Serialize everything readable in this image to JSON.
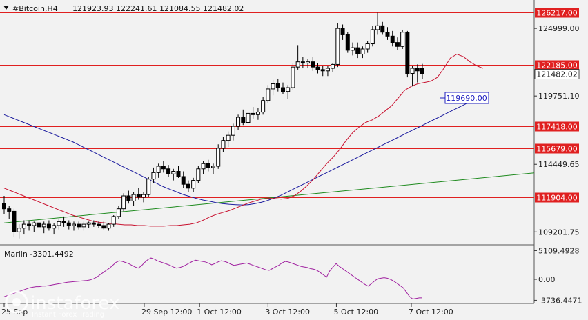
{
  "header": {
    "symbol": "#Bitcoin,H4",
    "ohlc": "121923.93 122241.61 121084.55 121482.02"
  },
  "indicator": {
    "label": "Marlin -3301.4492",
    "ticks": [
      "5109.4928",
      "0.00",
      "-3736.4471"
    ],
    "tick_values": [
      5109.4928,
      0,
      -3736.4471
    ]
  },
  "price_axis": {
    "ticks": [
      "124999.00",
      "119751.10",
      "114449.65",
      "109201.75"
    ],
    "tick_values": [
      124999.0,
      119751.1,
      114449.65,
      109201.75
    ],
    "current_price": "121482.02",
    "current_value": 121482.02
  },
  "levels": [
    {
      "label": "126217.00",
      "value": 126217.0,
      "style": "filled"
    },
    {
      "label": "122185.00",
      "value": 122185.0,
      "style": "filled"
    },
    {
      "label": "117418.00",
      "value": 117418.0,
      "style": "filled"
    },
    {
      "label": "115679.00",
      "value": 115679.0,
      "style": "filled"
    },
    {
      "label": "111904.00",
      "value": 111904.0,
      "style": "filled"
    }
  ],
  "callout": {
    "label": "119690.00",
    "value": 119690.0
  },
  "time_axis": {
    "labels": [
      "25 Sep",
      "29 Sep 12:00",
      "1 Oct 12:00",
      "3 Oct 12:00",
      "5 Oct 12:00",
      "7 Oct 12:00"
    ],
    "label_bars": [
      0,
      43,
      60,
      81,
      102,
      125
    ]
  },
  "watermark": {
    "brand": "instaforex",
    "tagline": "Instant Forex Trading"
  },
  "colors": {
    "background": "#f2f2f2",
    "level_line": "#e02020",
    "level_label_bg": "#e02020",
    "ma_fast": "#c8102e",
    "ma_slow": "#1a1a9e",
    "ma_long": "#1e8a1e",
    "oscillator": "#a020a0",
    "callout_border": "#2020c0"
  },
  "chart_data": {
    "type": "candlestick",
    "title": "#Bitcoin,H4",
    "ylim": [
      108200,
      127200
    ],
    "candles": [
      {
        "o": 111400,
        "h": 112000,
        "l": 110600,
        "c": 111000
      },
      {
        "o": 111000,
        "h": 111200,
        "l": 110200,
        "c": 110800
      },
      {
        "o": 110800,
        "h": 111000,
        "l": 108800,
        "c": 109200
      },
      {
        "o": 109200,
        "h": 109800,
        "l": 108700,
        "c": 109500
      },
      {
        "o": 109500,
        "h": 110100,
        "l": 109000,
        "c": 109800
      },
      {
        "o": 109800,
        "h": 110100,
        "l": 109300,
        "c": 109700
      },
      {
        "o": 109700,
        "h": 110000,
        "l": 109200,
        "c": 109900
      },
      {
        "o": 109900,
        "h": 110300,
        "l": 109400,
        "c": 109600
      },
      {
        "o": 109600,
        "h": 110000,
        "l": 109100,
        "c": 109800
      },
      {
        "o": 109800,
        "h": 110100,
        "l": 109300,
        "c": 109500
      },
      {
        "o": 109500,
        "h": 109900,
        "l": 109000,
        "c": 109700
      },
      {
        "o": 109700,
        "h": 110200,
        "l": 109400,
        "c": 110000
      },
      {
        "o": 110000,
        "h": 110400,
        "l": 109600,
        "c": 109900
      },
      {
        "o": 109900,
        "h": 110100,
        "l": 109400,
        "c": 109700
      },
      {
        "o": 109700,
        "h": 110000,
        "l": 109300,
        "c": 109800
      },
      {
        "o": 109800,
        "h": 110000,
        "l": 109400,
        "c": 109600
      },
      {
        "o": 109600,
        "h": 110000,
        "l": 109300,
        "c": 109800
      },
      {
        "o": 109800,
        "h": 110000,
        "l": 109500,
        "c": 109900
      },
      {
        "o": 109900,
        "h": 110100,
        "l": 109600,
        "c": 109800
      },
      {
        "o": 109800,
        "h": 110000,
        "l": 109500,
        "c": 109700
      },
      {
        "o": 109700,
        "h": 110000,
        "l": 109400,
        "c": 109500
      },
      {
        "o": 109500,
        "h": 109900,
        "l": 109300,
        "c": 109800
      },
      {
        "o": 109800,
        "h": 110500,
        "l": 109600,
        "c": 110400
      },
      {
        "o": 110400,
        "h": 111200,
        "l": 110200,
        "c": 111000
      },
      {
        "o": 111000,
        "h": 112200,
        "l": 110800,
        "c": 112000
      },
      {
        "o": 112000,
        "h": 112400,
        "l": 111400,
        "c": 111600
      },
      {
        "o": 111600,
        "h": 112300,
        "l": 111200,
        "c": 112100
      },
      {
        "o": 112100,
        "h": 112600,
        "l": 111700,
        "c": 111900
      },
      {
        "o": 111900,
        "h": 112300,
        "l": 111500,
        "c": 112100
      },
      {
        "o": 112100,
        "h": 113500,
        "l": 111900,
        "c": 113300
      },
      {
        "o": 113300,
        "h": 114200,
        "l": 113000,
        "c": 113800
      },
      {
        "o": 113800,
        "h": 114500,
        "l": 113400,
        "c": 114300
      },
      {
        "o": 114300,
        "h": 114700,
        "l": 113800,
        "c": 114100
      },
      {
        "o": 114100,
        "h": 114400,
        "l": 113500,
        "c": 113700
      },
      {
        "o": 113700,
        "h": 114100,
        "l": 113200,
        "c": 113900
      },
      {
        "o": 113900,
        "h": 114300,
        "l": 113400,
        "c": 113500
      },
      {
        "o": 113500,
        "h": 113900,
        "l": 112600,
        "c": 112900
      },
      {
        "o": 112900,
        "h": 113200,
        "l": 112300,
        "c": 112600
      },
      {
        "o": 112600,
        "h": 113400,
        "l": 112300,
        "c": 113200
      },
      {
        "o": 113200,
        "h": 114300,
        "l": 113000,
        "c": 114100
      },
      {
        "o": 114100,
        "h": 114700,
        "l": 113700,
        "c": 114500
      },
      {
        "o": 114500,
        "h": 114800,
        "l": 113900,
        "c": 114200
      },
      {
        "o": 114200,
        "h": 114500,
        "l": 113700,
        "c": 114300
      },
      {
        "o": 114300,
        "h": 116000,
        "l": 114100,
        "c": 115700
      },
      {
        "o": 115700,
        "h": 116600,
        "l": 115400,
        "c": 116300
      },
      {
        "o": 116300,
        "h": 117000,
        "l": 115800,
        "c": 116700
      },
      {
        "o": 116700,
        "h": 117600,
        "l": 116300,
        "c": 117400
      },
      {
        "o": 117400,
        "h": 118300,
        "l": 117100,
        "c": 118100
      },
      {
        "o": 118100,
        "h": 118700,
        "l": 117500,
        "c": 117700
      },
      {
        "o": 117700,
        "h": 118700,
        "l": 117500,
        "c": 118400
      },
      {
        "o": 118400,
        "h": 118900,
        "l": 118000,
        "c": 118300
      },
      {
        "o": 118300,
        "h": 118800,
        "l": 117900,
        "c": 118500
      },
      {
        "o": 118500,
        "h": 119700,
        "l": 118300,
        "c": 119400
      },
      {
        "o": 119400,
        "h": 120600,
        "l": 119200,
        "c": 120300
      },
      {
        "o": 120300,
        "h": 121000,
        "l": 119800,
        "c": 120700
      },
      {
        "o": 120700,
        "h": 121100,
        "l": 120100,
        "c": 120400
      },
      {
        "o": 120400,
        "h": 120800,
        "l": 119900,
        "c": 120100
      },
      {
        "o": 120100,
        "h": 120600,
        "l": 119500,
        "c": 120400
      },
      {
        "o": 120400,
        "h": 122300,
        "l": 120200,
        "c": 122000
      },
      {
        "o": 122000,
        "h": 123700,
        "l": 121800,
        "c": 122400
      },
      {
        "o": 122400,
        "h": 122800,
        "l": 121900,
        "c": 122300
      },
      {
        "o": 122300,
        "h": 122600,
        "l": 121900,
        "c": 122400
      },
      {
        "o": 122400,
        "h": 122800,
        "l": 121700,
        "c": 122000
      },
      {
        "o": 122000,
        "h": 122300,
        "l": 121500,
        "c": 121800
      },
      {
        "o": 121800,
        "h": 122100,
        "l": 121300,
        "c": 121700
      },
      {
        "o": 121700,
        "h": 122100,
        "l": 121300,
        "c": 121900
      },
      {
        "o": 121900,
        "h": 122300,
        "l": 121600,
        "c": 122200
      },
      {
        "o": 122200,
        "h": 125400,
        "l": 122000,
        "c": 125000
      },
      {
        "o": 125000,
        "h": 125300,
        "l": 124100,
        "c": 124500
      },
      {
        "o": 124500,
        "h": 124700,
        "l": 123100,
        "c": 123300
      },
      {
        "o": 123300,
        "h": 123900,
        "l": 122900,
        "c": 123500
      },
      {
        "o": 123500,
        "h": 123900,
        "l": 122700,
        "c": 123000
      },
      {
        "o": 123000,
        "h": 123600,
        "l": 122700,
        "c": 123400
      },
      {
        "o": 123400,
        "h": 124000,
        "l": 123100,
        "c": 123800
      },
      {
        "o": 123800,
        "h": 125200,
        "l": 123600,
        "c": 124900
      },
      {
        "o": 124900,
        "h": 126217,
        "l": 124500,
        "c": 125200
      },
      {
        "o": 125200,
        "h": 125500,
        "l": 124500,
        "c": 124700
      },
      {
        "o": 124700,
        "h": 125100,
        "l": 124100,
        "c": 124400
      },
      {
        "o": 124400,
        "h": 124800,
        "l": 123600,
        "c": 123900
      },
      {
        "o": 123900,
        "h": 124300,
        "l": 123300,
        "c": 123600
      },
      {
        "o": 123600,
        "h": 124900,
        "l": 123400,
        "c": 124700
      },
      {
        "o": 124700,
        "h": 124800,
        "l": 121200,
        "c": 121500
      },
      {
        "o": 121500,
        "h": 122100,
        "l": 120500,
        "c": 121900
      },
      {
        "o": 121900,
        "h": 122200,
        "l": 120800,
        "c": 121700
      },
      {
        "o": 121923.93,
        "h": 122241.61,
        "l": 121084.55,
        "c": 121482.02
      }
    ],
    "ma_fast": [
      110500,
      110350,
      110200,
      110050,
      109950,
      109900,
      109850,
      109800,
      109750,
      109750,
      109700,
      109700,
      109650,
      109650,
      109650,
      109700,
      109700,
      109750,
      109800,
      109900,
      110100,
      110350,
      110550,
      110700,
      110850,
      111050,
      111250,
      111450,
      111600,
      111750,
      111800,
      111800,
      111750,
      111800,
      112000,
      112350,
      112800,
      113300,
      113900,
      114500,
      115000,
      115600,
      116300,
      116900,
      117350,
      117700,
      117900,
      118200,
      118600,
      119000,
      119600,
      120200,
      120500,
      120700,
      120800,
      120900,
      121200,
      121900,
      122700,
      123000,
      122800,
      122400,
      122100,
      121900
    ],
    "ma_fast_start": 21,
    "ma_slow": [
      116200,
      115950,
      115700,
      115450,
      115200,
      114950,
      114700,
      114450,
      114200,
      113950,
      113700,
      113450,
      113200,
      112950,
      112700,
      112500,
      112300,
      112100,
      111950,
      111800,
      111680,
      111580,
      111480,
      111400,
      111350,
      111320,
      111300,
      111320,
      111400,
      111500,
      111650,
      111850,
      112050,
      112300,
      112550,
      112800,
      113050,
      113300,
      113550,
      113800,
      114050,
      114300,
      114550,
      114800,
      115050,
      115300,
      115550,
      115800,
      116050,
      116300,
      116550,
      116800,
      117050,
      117300,
      117550,
      117800,
      118050,
      118300,
      118550,
      118800,
      119050,
      119300,
      119500,
      119690
    ],
    "ma_slow_start": 21,
    "ma_long": [
      {
        "bar": 0,
        "v": 109900
      },
      {
        "bar": 84,
        "v": 111904
      }
    ],
    "oscillator": [
      -3100,
      -2900,
      -2700,
      -2500,
      -2300,
      -2100,
      -1900,
      -1700,
      -1500,
      -1400,
      -1300,
      -1300,
      -1200,
      -1200,
      -1100,
      -1000,
      -900,
      -800,
      -700,
      -600,
      -500,
      -450,
      -400,
      -350,
      -300,
      -250,
      -200,
      -100,
      100,
      400,
      800,
      1200,
      1600,
      2000,
      2500,
      3000,
      3300,
      3200,
      3000,
      2800,
      2500,
      2200,
      2000,
      2400,
      3000,
      3500,
      3800,
      3600,
      3300,
      3100,
      2900,
      2700,
      2500,
      2200,
      2000,
      2100,
      2300,
      2600,
      2900,
      3200,
      3400,
      3300,
      3200,
      3100,
      2900,
      2600,
      2800,
      3100,
      3300,
      3200,
      3000,
      2700,
      2500,
      2600,
      2700,
      2800,
      2900,
      2700,
      2500,
      2300,
      2100,
      1900,
      1700,
      1600,
      1900,
      2200,
      2500,
      2900,
      3200,
      3100,
      2900,
      2700,
      2500,
      2300,
      2200,
      2100,
      1900,
      1800,
      1600,
      1200,
      800,
      400,
      1500,
      2200,
      2800,
      2300,
      1900,
      1500,
      1100,
      700,
      300,
      -100,
      -500,
      -900,
      -1200,
      -800,
      -300,
      100,
      200,
      300,
      200,
      0,
      -300,
      -700,
      -1100,
      -1500,
      -2300,
      -3100,
      -3500,
      -3400,
      -3300,
      -3301.4492
    ],
    "oscillator_ylim": [
      -4300,
      5900
    ]
  }
}
